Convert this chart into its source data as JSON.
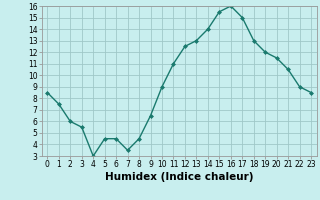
{
  "x": [
    0,
    1,
    2,
    3,
    4,
    5,
    6,
    7,
    8,
    9,
    10,
    11,
    12,
    13,
    14,
    15,
    16,
    17,
    18,
    19,
    20,
    21,
    22,
    23
  ],
  "y": [
    8.5,
    7.5,
    6.0,
    5.5,
    3.0,
    4.5,
    4.5,
    3.5,
    4.5,
    6.5,
    9.0,
    11.0,
    12.5,
    13.0,
    14.0,
    15.5,
    16.0,
    15.0,
    13.0,
    12.0,
    11.5,
    10.5,
    9.0,
    8.5
  ],
  "line_color": "#1a7a6e",
  "marker_color": "#1a7a6e",
  "bg_color": "#c8eeee",
  "grid_color": "#a0c8c8",
  "xlabel": "Humidex (Indice chaleur)",
  "xlim": [
    -0.5,
    23.5
  ],
  "ylim": [
    3,
    16
  ],
  "yticks": [
    3,
    4,
    5,
    6,
    7,
    8,
    9,
    10,
    11,
    12,
    13,
    14,
    15,
    16
  ],
  "xticks": [
    0,
    1,
    2,
    3,
    4,
    5,
    6,
    7,
    8,
    9,
    10,
    11,
    12,
    13,
    14,
    15,
    16,
    17,
    18,
    19,
    20,
    21,
    22,
    23
  ],
  "tick_fontsize": 5.5,
  "label_fontsize": 7.5
}
